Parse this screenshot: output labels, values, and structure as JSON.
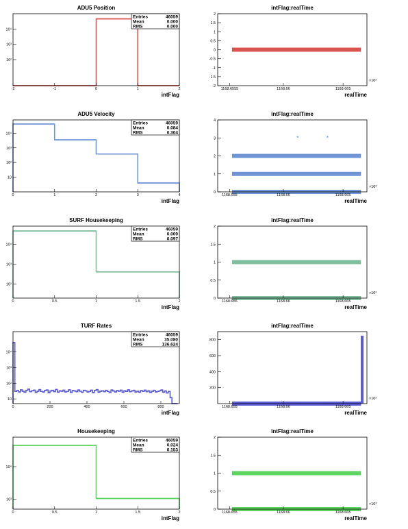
{
  "chart_data": [
    {
      "type": "bar",
      "title": "ADU5 Position",
      "xlabel": "intFlag",
      "ylabel": "",
      "bins": [
        [
          -2,
          -1
        ],
        [
          -1,
          0
        ],
        [
          0,
          1
        ],
        [
          1,
          2
        ]
      ],
      "values": [
        0,
        0,
        46059,
        0
      ],
      "xlim": [
        -2,
        2
      ],
      "ylim": [
        2,
        100000
      ],
      "log_y": true,
      "x_ticks": [
        "-2",
        "-1",
        "0",
        "1",
        "2"
      ],
      "y_ticks": [
        {
          "value": 100,
          "label": "10²"
        },
        {
          "value": 1000,
          "label": "10³"
        },
        {
          "value": 10000,
          "label": "10⁴"
        }
      ],
      "color": "#d9534f",
      "stats": {
        "entries_label": "Entries",
        "entries": "46059",
        "mean_label": "Mean",
        "mean": "0.000",
        "rms_label": "RMS",
        "rms": "0.000"
      }
    },
    {
      "type": "scatter",
      "title": "intFlag:realTime",
      "xlabel": "realTime",
      "ylabel": "",
      "xlim": [
        1168.6545,
        1168.667
      ],
      "ylim": [
        -2,
        2
      ],
      "x_ticks": [
        {
          "value": 1168.6555,
          "label": "1168.6555"
        },
        {
          "value": 1168.66,
          "label": "1168.66"
        },
        {
          "value": 1168.665,
          "label": "1168.665"
        }
      ],
      "y_ticks": [
        {
          "value": -2,
          "label": "-2"
        },
        {
          "value": -1.5,
          "label": "-1.5"
        },
        {
          "value": -1,
          "label": "-1"
        },
        {
          "value": -0.5,
          "label": "-0.5"
        },
        {
          "value": 0,
          "label": "0"
        },
        {
          "value": 0.5,
          "label": "0.5"
        },
        {
          "value": 1,
          "label": "1"
        },
        {
          "value": 1.5,
          "label": "1.5"
        },
        {
          "value": 2,
          "label": "2"
        }
      ],
      "exponent_label": "×10³",
      "bands": [
        {
          "y": 0,
          "x": [
            1168.6557,
            1168.6665
          ]
        }
      ],
      "points": [],
      "color": "#d9534f"
    },
    {
      "type": "bar",
      "title": "ADU5 Velocity",
      "xlabel": "intFlag",
      "ylabel": "",
      "bins": [
        [
          0,
          1
        ],
        [
          1,
          2
        ],
        [
          2,
          3
        ],
        [
          3,
          4
        ]
      ],
      "values": [
        42000,
        3500,
        380,
        4
      ],
      "xlim": [
        0,
        4
      ],
      "ylim": [
        1,
        80000
      ],
      "log_y": true,
      "x_ticks": [
        "0",
        "1",
        "2",
        "3",
        "4"
      ],
      "y_ticks": [
        {
          "value": 10,
          "label": "10"
        },
        {
          "value": 100,
          "label": "10²"
        },
        {
          "value": 1000,
          "label": "10³"
        },
        {
          "value": 10000,
          "label": "10⁴"
        }
      ],
      "color": "#6f94d6",
      "stats": {
        "entries_label": "Entries",
        "entries": "46059",
        "mean_label": "Mean",
        "mean": "0.084",
        "rms_label": "RMS",
        "rms": "0.304"
      }
    },
    {
      "type": "scatter",
      "title": "intFlag:realTime",
      "xlabel": "realTime",
      "ylabel": "",
      "xlim": [
        1168.6545,
        1168.667
      ],
      "ylim": [
        0,
        4
      ],
      "x_ticks": [
        {
          "value": 1168.6555,
          "label": "1168.655"
        },
        {
          "value": 1168.66,
          "label": "1168.66"
        },
        {
          "value": 1168.665,
          "label": "1168.665"
        }
      ],
      "y_ticks": [
        {
          "value": 0,
          "label": "0"
        },
        {
          "value": 1,
          "label": "1"
        },
        {
          "value": 2,
          "label": "2"
        },
        {
          "value": 3,
          "label": "3"
        },
        {
          "value": 4,
          "label": "4"
        }
      ],
      "exponent_label": "×10³",
      "bands": [
        {
          "y": 0,
          "x": [
            1168.6557,
            1168.6665
          ]
        },
        {
          "y": 1,
          "x": [
            1168.6557,
            1168.6665
          ]
        },
        {
          "y": 2,
          "x": [
            1168.6557,
            1168.6665
          ]
        }
      ],
      "points": [
        {
          "x": 1168.6612,
          "y": 3
        },
        {
          "x": 1168.6637,
          "y": 3
        }
      ],
      "color": "#6f94d6"
    },
    {
      "type": "bar",
      "title": "SURF Housekeeping",
      "xlabel": "intFlag",
      "ylabel": "",
      "bins": [
        [
          0,
          1
        ],
        [
          1,
          2
        ]
      ],
      "values": [
        45650,
        409
      ],
      "xlim": [
        0,
        2
      ],
      "ylim": [
        20,
        80000
      ],
      "log_y": true,
      "x_ticks": [
        "0",
        "0.5",
        "1",
        "1.5",
        "2"
      ],
      "y_ticks": [
        {
          "value": 100,
          "label": "10²"
        },
        {
          "value": 1000,
          "label": "10³"
        },
        {
          "value": 10000,
          "label": "10⁴"
        }
      ],
      "color": "#7fbf9f",
      "stats": {
        "entries_label": "Entries",
        "entries": "46059",
        "mean_label": "Mean",
        "mean": "0.009",
        "rms_label": "RMS",
        "rms": "0.097"
      }
    },
    {
      "type": "scatter",
      "title": "intFlag:realTime",
      "xlabel": "realTime",
      "ylabel": "",
      "xlim": [
        1168.6545,
        1168.667
      ],
      "ylim": [
        0,
        2
      ],
      "x_ticks": [
        {
          "value": 1168.6555,
          "label": "1168.655"
        },
        {
          "value": 1168.66,
          "label": "1168.66"
        },
        {
          "value": 1168.665,
          "label": "1168.665"
        }
      ],
      "y_ticks": [
        {
          "value": 0,
          "label": "0"
        },
        {
          "value": 0.5,
          "label": "0.5"
        },
        {
          "value": 1,
          "label": "1"
        },
        {
          "value": 1.5,
          "label": "1.5"
        },
        {
          "value": 2,
          "label": "2"
        }
      ],
      "exponent_label": "×10³",
      "bands": [
        {
          "y": 0,
          "x": [
            1168.6557,
            1168.6665
          ]
        },
        {
          "y": 1,
          "x": [
            1168.6557,
            1168.6665
          ]
        }
      ],
      "points": [],
      "color": "#7fbf9f"
    },
    {
      "type": "bar",
      "title": "TURF Rates",
      "xlabel": "intFlag",
      "ylabel": "",
      "xlim": [
        0,
        900
      ],
      "ylim": [
        5,
        200000
      ],
      "log_y": true,
      "bin_width": 10,
      "first_bin_value": 40000,
      "values": [
        40000,
        30,
        34,
        28,
        38,
        31,
        27,
        35,
        42,
        29,
        33,
        36,
        26,
        31,
        39,
        30,
        28,
        34,
        37,
        25,
        32,
        35,
        29,
        40,
        27,
        33,
        31,
        36,
        28,
        30,
        38,
        26,
        34,
        32,
        29,
        37,
        31,
        27,
        35,
        33,
        28,
        30,
        36,
        25,
        34,
        39,
        27,
        31,
        33,
        29,
        35,
        30,
        26,
        37,
        32,
        28,
        34,
        31,
        36,
        27,
        33,
        30,
        38,
        29,
        32,
        35,
        28,
        31,
        27,
        34,
        30,
        36,
        29,
        33,
        26,
        31,
        35,
        28,
        30,
        33,
        37,
        27,
        32,
        24,
        30,
        12,
        5,
        5,
        5
      ],
      "x_ticks": [
        "0",
        "200",
        "400",
        "600",
        "800"
      ],
      "y_ticks": [
        {
          "value": 10,
          "label": "10"
        },
        {
          "value": 100,
          "label": "10²"
        },
        {
          "value": 1000,
          "label": "10³"
        },
        {
          "value": 10000,
          "label": "10⁴"
        }
      ],
      "color": "#5b5bd6",
      "stats": {
        "entries_label": "Entries",
        "entries": "46059",
        "mean_label": "Mean",
        "mean": "35.080",
        "rms_label": "RMS",
        "rms": "136.624"
      }
    },
    {
      "type": "scatter",
      "title": "intFlag:realTime",
      "xlabel": "realTime",
      "ylabel": "",
      "xlim": [
        1168.6545,
        1168.667
      ],
      "ylim": [
        0,
        900
      ],
      "x_ticks": [
        {
          "value": 1168.6555,
          "label": "1168.655"
        },
        {
          "value": 1168.66,
          "label": "1168.66"
        },
        {
          "value": 1168.665,
          "label": "1168.665"
        }
      ],
      "y_ticks": [
        {
          "value": 200,
          "label": "200"
        },
        {
          "value": 400,
          "label": "400"
        },
        {
          "value": 600,
          "label": "600"
        },
        {
          "value": 800,
          "label": "800"
        }
      ],
      "exponent_label": "×10³",
      "bands": [
        {
          "y": 0,
          "x": [
            1168.6557,
            1168.6665
          ]
        }
      ],
      "spike": {
        "x": 1168.6666,
        "y_range": [
          0,
          850
        ]
      },
      "points": [],
      "color": "#5b5bd6"
    },
    {
      "type": "bar",
      "title": "Housekeeping",
      "xlabel": "intFlag",
      "ylabel": "",
      "bins": [
        [
          0,
          1
        ],
        [
          1,
          2
        ]
      ],
      "values": [
        45000,
        1059
      ],
      "xlim": [
        0,
        2
      ],
      "ylim": [
        500,
        80000
      ],
      "log_y": true,
      "x_ticks": [
        "0",
        "0.5",
        "1",
        "1.5",
        "2"
      ],
      "y_ticks": [
        {
          "value": 1000,
          "label": "10³"
        },
        {
          "value": 10000,
          "label": "10⁴"
        }
      ],
      "color": "#5fd35f",
      "stats": {
        "entries_label": "Entries",
        "entries": "46059",
        "mean_label": "Mean",
        "mean": "0.024",
        "rms_label": "RMS",
        "rms": "0.153"
      }
    },
    {
      "type": "scatter",
      "title": "intFlag:realTime",
      "xlabel": "realTime",
      "ylabel": "",
      "xlim": [
        1168.6545,
        1168.667
      ],
      "ylim": [
        0,
        2
      ],
      "x_ticks": [
        {
          "value": 1168.6555,
          "label": "1168.655"
        },
        {
          "value": 1168.66,
          "label": "1168.66"
        },
        {
          "value": 1168.665,
          "label": "1168.665"
        }
      ],
      "y_ticks": [
        {
          "value": 0,
          "label": "0"
        },
        {
          "value": 0.5,
          "label": "0.5"
        },
        {
          "value": 1,
          "label": "1"
        },
        {
          "value": 1.5,
          "label": "1.5"
        },
        {
          "value": 2,
          "label": "2"
        }
      ],
      "exponent_label": "×10³",
      "bands": [
        {
          "y": 0,
          "x": [
            1168.6557,
            1168.6665
          ]
        },
        {
          "y": 1,
          "x": [
            1168.6557,
            1168.6665
          ]
        }
      ],
      "points": [],
      "color": "#5fd35f"
    }
  ]
}
